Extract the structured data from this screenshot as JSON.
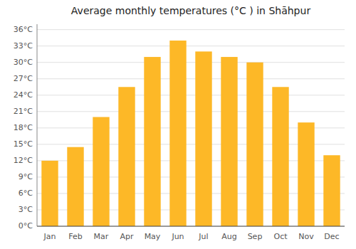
{
  "chart_data": {
    "type": "bar",
    "title": "Average monthly temperatures (°C ) in Shāhpur",
    "categories": [
      "Jan",
      "Feb",
      "Mar",
      "Apr",
      "May",
      "Jun",
      "Jul",
      "Aug",
      "Sep",
      "Oct",
      "Nov",
      "Dec"
    ],
    "values": [
      12,
      14.5,
      20,
      25.5,
      31,
      34,
      32,
      31,
      30,
      25.5,
      19,
      13
    ],
    "color": "#FDB827",
    "ylim": [
      0,
      37
    ],
    "yticks": [
      {
        "value": 0,
        "label": "0°C"
      },
      {
        "value": 3,
        "label": "3°C"
      },
      {
        "value": 6,
        "label": "6°C"
      },
      {
        "value": 9,
        "label": "9°C"
      },
      {
        "value": 12,
        "label": "12°C"
      },
      {
        "value": 15,
        "label": "15°C"
      },
      {
        "value": 18,
        "label": "18°C"
      },
      {
        "value": 21,
        "label": "21°C"
      },
      {
        "value": 24,
        "label": "24°C"
      },
      {
        "value": 27,
        "label": "27°C"
      },
      {
        "value": 30,
        "label": "30°C"
      },
      {
        "value": 33,
        "label": "33°C"
      },
      {
        "value": 36,
        "label": "36°C"
      }
    ],
    "grid": true
  }
}
